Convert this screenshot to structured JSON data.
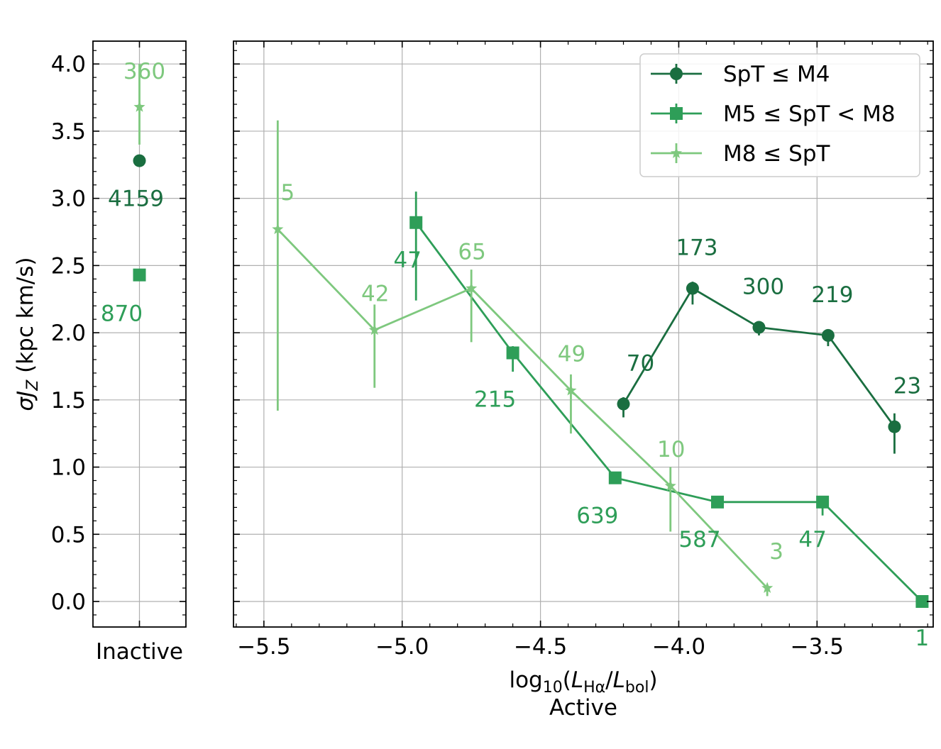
{
  "chart_data": {
    "type": "line",
    "ylabel": "σJ_Z (kpc km/s)",
    "ylim": [
      -0.19,
      4.17
    ],
    "yticks": [
      "0.0",
      "0.5",
      "1.0",
      "1.5",
      "2.0",
      "2.5",
      "3.0",
      "3.5",
      "4.0"
    ],
    "grid": true,
    "legend_placement": "top-right",
    "panels": [
      {
        "name": "inactive",
        "xlabel": "Inactive",
        "series": [
          {
            "key": "s1",
            "y": 3.28,
            "yerr": [
              0.02,
              0.02
            ],
            "n": "4159"
          },
          {
            "key": "s2",
            "y": 2.43,
            "yerr": [
              0.02,
              0.02
            ],
            "n": "870"
          },
          {
            "key": "s3",
            "y": 3.68,
            "yerr": [
              0.28,
              0.32
            ],
            "n": "360"
          }
        ]
      },
      {
        "name": "active",
        "xlabel": "log10(LHα/Lbol)",
        "xlabel_parts": {
          "func": "log",
          "func_sub": "10",
          "num": "L",
          "num_sub": "Hα",
          "den": "L",
          "den_sub": "bol"
        },
        "sublabel": "Active",
        "xlim": [
          -5.61,
          -3.08
        ],
        "xticks": [
          "−5.5",
          "−5.0",
          "−4.5",
          "−4.0",
          "−3.5"
        ],
        "xtick_values": [
          -5.5,
          -5.0,
          -4.5,
          -4.0,
          -3.5
        ],
        "series": [
          {
            "key": "s1",
            "points": [
              {
                "x": -4.2,
                "y": 1.47,
                "yerr": [
                  0.1,
                  0.05
                ],
                "n": "70"
              },
              {
                "x": -3.95,
                "y": 2.33,
                "yerr": [
                  0.12,
                  0.05
                ],
                "n": "173"
              },
              {
                "x": -3.71,
                "y": 2.04,
                "yerr": [
                  0.06,
                  0.03
                ],
                "n": "300"
              },
              {
                "x": -3.46,
                "y": 1.98,
                "yerr": [
                  0.08,
                  0.03
                ],
                "n": "219"
              },
              {
                "x": -3.22,
                "y": 1.3,
                "yerr": [
                  0.2,
                  0.1
                ],
                "n": "23"
              }
            ]
          },
          {
            "key": "s2",
            "points": [
              {
                "x": -4.95,
                "y": 2.82,
                "yerr": [
                  0.58,
                  0.23
                ],
                "n": "47"
              },
              {
                "x": -4.6,
                "y": 1.85,
                "yerr": [
                  0.14,
                  0.05
                ],
                "n": "215"
              },
              {
                "x": -4.23,
                "y": 0.92,
                "yerr": [
                  0.03,
                  0.03
                ],
                "n": "639"
              },
              {
                "x": -3.86,
                "y": 0.74,
                "yerr": [
                  0.03,
                  0.03
                ],
                "n": "587"
              },
              {
                "x": -3.48,
                "y": 0.74,
                "yerr": [
                  0.1,
                  0.03
                ],
                "n": "47"
              },
              {
                "x": -3.12,
                "y": 0.0,
                "yerr": [
                  0.0,
                  0.0
                ],
                "n": "1"
              }
            ]
          },
          {
            "key": "s3",
            "points": [
              {
                "x": -5.45,
                "y": 2.77,
                "yerr": [
                  1.35,
                  0.81
                ],
                "n": "5"
              },
              {
                "x": -5.1,
                "y": 2.02,
                "yerr": [
                  0.43,
                  0.19
                ],
                "n": "42"
              },
              {
                "x": -4.75,
                "y": 2.33,
                "yerr": [
                  0.4,
                  0.14
                ],
                "n": "65"
              },
              {
                "x": -4.39,
                "y": 1.57,
                "yerr": [
                  0.32,
                  0.12
                ],
                "n": "49"
              },
              {
                "x": -4.03,
                "y": 0.86,
                "yerr": [
                  0.34,
                  0.14
                ],
                "n": "10"
              },
              {
                "x": -3.68,
                "y": 0.1,
                "yerr": [
                  0.06,
                  0.02
                ],
                "n": "3"
              }
            ]
          }
        ]
      }
    ],
    "legend": [
      {
        "key": "s1",
        "parts": [
          "SpT",
          " ≤ ",
          "M4"
        ]
      },
      {
        "key": "s2",
        "parts": [
          "M5",
          " ≤ ",
          "SpT",
          " < ",
          "M8"
        ]
      },
      {
        "key": "s3",
        "parts": [
          "M8",
          " ≤ ",
          "SpT"
        ]
      }
    ],
    "styles": {
      "s1": {
        "color": "#1a6e40",
        "marker": "circle"
      },
      "s2": {
        "color": "#2e9e58",
        "marker": "square"
      },
      "s3": {
        "color": "#7ec87e",
        "marker": "star"
      }
    }
  }
}
